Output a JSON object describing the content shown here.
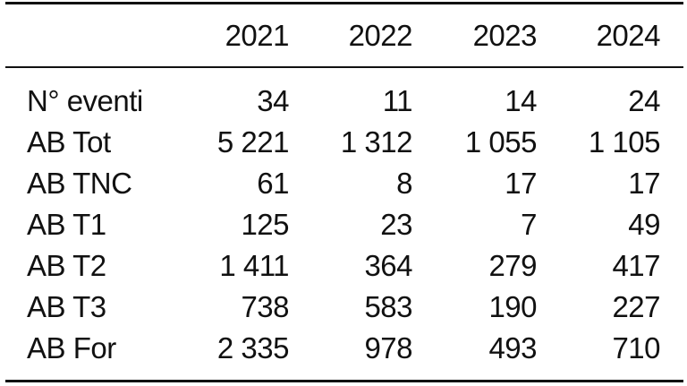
{
  "table": {
    "columns": [
      "2021",
      "2022",
      "2023",
      "2024"
    ],
    "rows": [
      [
        "N° eventi",
        "34",
        "11",
        "14",
        "24"
      ],
      [
        "AB Tot",
        "5 221",
        "1 312",
        "1 055",
        "1 105"
      ],
      [
        "AB TNC",
        "61",
        "8",
        "17",
        "17"
      ],
      [
        "AB T1",
        "125",
        "23",
        "7",
        "49"
      ],
      [
        "AB T2",
        "1 411",
        "364",
        "279",
        "417"
      ],
      [
        "AB T3",
        "738",
        "583",
        "190",
        "227"
      ],
      [
        "AB For",
        "2 335",
        "978",
        "493",
        "710"
      ]
    ]
  }
}
